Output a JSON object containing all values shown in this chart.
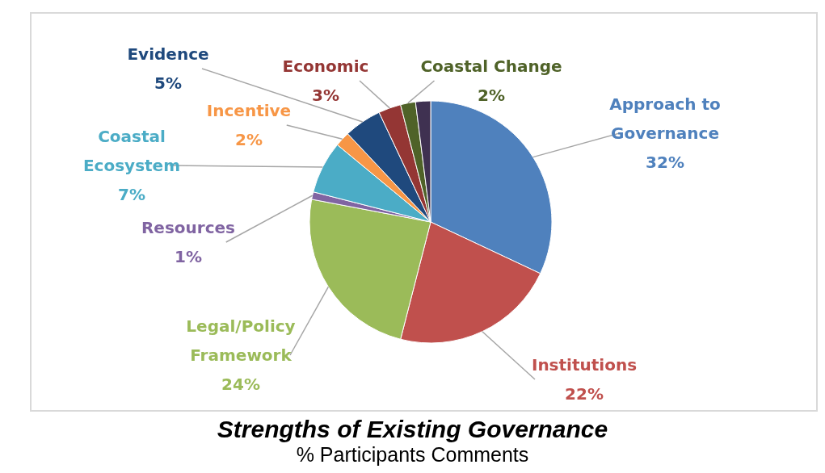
{
  "chart_data": {
    "type": "pie",
    "title": "Strengths of Existing Governance",
    "subtitle": "% Participants Comments",
    "categories": [
      "Approach to Governance",
      "Institutions",
      "Legal/Policy Framework",
      "Resources",
      "Coastal Ecosystem",
      "Incentive",
      "Evidence",
      "Economic",
      "Coastal Change",
      null
    ],
    "values": [
      32,
      22,
      24,
      1,
      7,
      2,
      5,
      3,
      2,
      2
    ],
    "value_labels": [
      "32%",
      "22%",
      "24%",
      "1%",
      "7%",
      "2%",
      "5%",
      "3%",
      "2%",
      null
    ],
    "colors": [
      "#4f81bd",
      "#c0504d",
      "#9bbb59",
      "#8064a2",
      "#4bacc6",
      "#f79646",
      "#1f497d",
      "#943634",
      "#4f6228",
      "#3f3151"
    ],
    "legend": false
  }
}
